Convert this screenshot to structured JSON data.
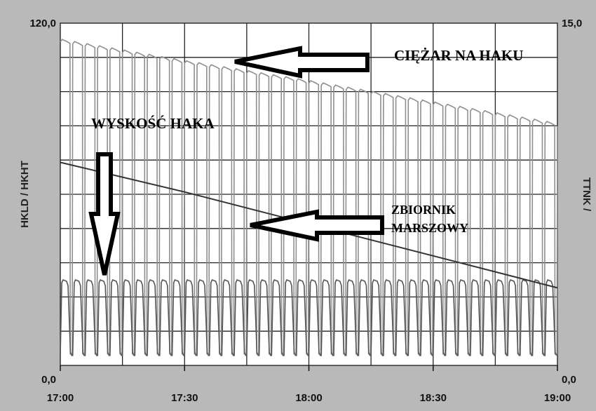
{
  "chart_data": {
    "type": "line",
    "x_ticks": [
      "17:00",
      "17:30",
      "18:00",
      "18:30",
      "19:00"
    ],
    "x_range": [
      "17:00",
      "19:00"
    ],
    "y_left": {
      "label": "HKLD / HKHT",
      "range": [
        0.0,
        120.0
      ],
      "tick_labels": [
        "0,0",
        "120,0"
      ]
    },
    "y_right": {
      "label": "TTNK /",
      "range": [
        0.0,
        15.0
      ],
      "tick_labels": [
        "0,0",
        "15,0"
      ]
    },
    "grid": true,
    "annotations": {
      "hookload": "CIĘŻAR NA HAKU",
      "block_height": "WYSKOŚĆ HAKA",
      "trip_tank_line1": "ZBIORNIK",
      "trip_tank_line2": "MARSZOWY"
    },
    "series": [
      {
        "key": "hookload",
        "axis": "left",
        "style": "stepped-spikes",
        "color": "#8f8f8f",
        "plateau_x": [
          "17:00",
          "17:30",
          "18:00",
          "18:30",
          "19:00"
        ],
        "plateau_y": [
          113.5,
          106.0,
          99.0,
          91.5,
          84.0
        ],
        "low_y": 4.0,
        "cycles": 40
      },
      {
        "key": "block_height",
        "axis": "left",
        "style": "oscillation",
        "color": "#555555",
        "min": 3.5,
        "max": 30.0,
        "cycles": 40
      },
      {
        "key": "trip_tank",
        "axis": "right",
        "style": "line",
        "color": "#333333",
        "x": [
          "17:00",
          "17:30",
          "18:00",
          "18:30",
          "19:00"
        ],
        "y": [
          8.9,
          7.6,
          6.2,
          4.8,
          3.4
        ]
      }
    ]
  }
}
